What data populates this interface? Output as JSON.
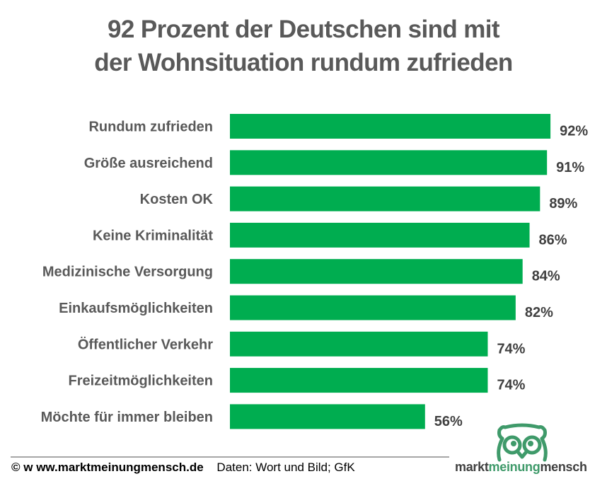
{
  "title": {
    "line1": "92 Prozent der Deutschen sind mit",
    "line2": "der Wohnsituation rundum zufrieden"
  },
  "colors": {
    "bar": "#00ad50",
    "title": "#595959",
    "label": "#595959",
    "value": "#404040",
    "logo_green": "#3f9a6a"
  },
  "chart_data": {
    "type": "bar",
    "orientation": "horizontal",
    "title": "92 Prozent der Deutschen sind mit der Wohnsituation rundum zufrieden",
    "xlabel": "",
    "ylabel": "",
    "xlim": [
      0,
      100
    ],
    "unit": "%",
    "grid": false,
    "legend": "none",
    "categories": [
      "Rundum zufrieden",
      "Größe ausreichend",
      "Kosten OK",
      "Keine Kriminalität",
      "Medizinische Versorgung",
      "Einkaufsmöglichkeiten",
      "Öffentlicher Verkehr",
      "Freizeitmöglichkeiten",
      "Möchte für immer bleiben"
    ],
    "values": [
      92,
      91,
      89,
      86,
      84,
      82,
      74,
      74,
      56
    ],
    "value_labels": [
      "92%",
      "91%",
      "89%",
      "86%",
      "84%",
      "82%",
      "74%",
      "74%",
      "56%"
    ]
  },
  "footer": {
    "copyright": "© w ww.marktmeinungmensch.de",
    "source": "Daten: Wort und Bild; GfK"
  },
  "logo": {
    "icon": "owl-icon",
    "part1": "markt",
    "part2": "meinung",
    "part3": "mensch"
  }
}
